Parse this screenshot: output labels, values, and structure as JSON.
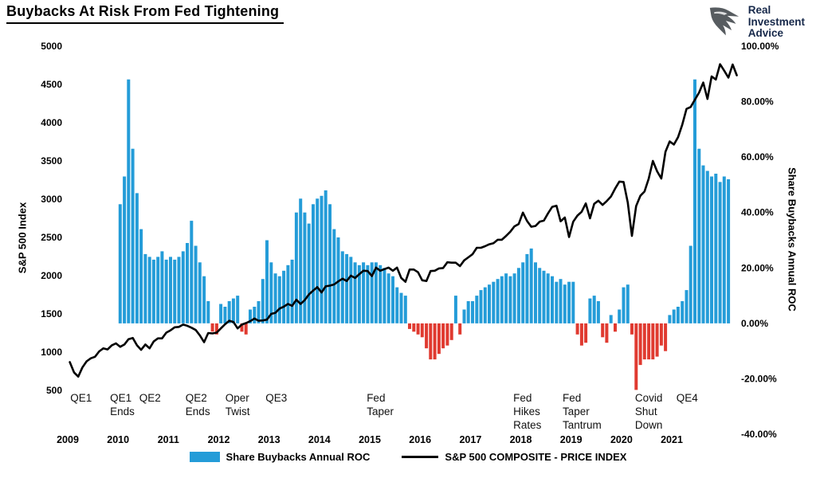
{
  "header": {
    "title": "Buybacks At Risk From Fed Tightening",
    "logo": {
      "lines": [
        "Real",
        "Investment",
        "Advice"
      ]
    }
  },
  "chart_data": {
    "type": "combo-bar-line",
    "title": "Buybacks At Risk From Fed Tightening",
    "x_axis": {
      "start": 2009,
      "end": 2022.25,
      "labels": [
        "2009",
        "2010",
        "2011",
        "2012",
        "2013",
        "2014",
        "2015",
        "2016",
        "2017",
        "2018",
        "2019",
        "2020",
        "2021"
      ]
    },
    "left_axis": {
      "title": "S&P 500 Index",
      "min": 500,
      "max": 5000,
      "ticks": [
        "5000",
        "4500",
        "4000",
        "3500",
        "3000",
        "2500",
        "2000",
        "1500",
        "1000",
        "500"
      ]
    },
    "right_axis": {
      "title": "Share Buybacks Annual ROC",
      "min": -40,
      "max": 100,
      "ticks": [
        "100.00%",
        "80.00%",
        "60.00%",
        "40.00%",
        "20.00%",
        "0.00%",
        "-20.00%",
        "-40.00%"
      ]
    },
    "colors": {
      "bar_positive": "#249CD8",
      "bar_negative": "#E03A30",
      "line": "#000000"
    },
    "series": [
      {
        "name": "Share Buybacks Annual ROC",
        "type": "bar",
        "axis": "right",
        "unit": "%",
        "interval": "monthly",
        "start_year": 2010,
        "values": [
          43,
          53,
          88,
          63,
          47,
          34,
          25,
          24,
          23,
          24,
          26,
          23,
          24,
          23,
          24,
          26,
          29,
          37,
          28,
          22,
          17,
          8,
          -3,
          -4,
          7,
          6,
          8,
          9,
          10,
          -3,
          -4,
          5,
          6,
          8,
          16,
          30,
          22,
          18,
          17,
          19,
          21,
          23,
          40,
          45,
          40,
          36,
          43,
          45,
          46,
          48,
          43,
          34,
          31,
          26,
          25,
          24,
          22,
          21,
          22,
          21,
          22,
          22,
          21,
          20,
          18,
          17,
          13,
          11,
          10,
          -2,
          -3,
          -4,
          -5,
          -9,
          -13,
          -13,
          -11,
          -9,
          -8,
          -6,
          10,
          -4,
          5,
          8,
          8,
          10,
          12,
          13,
          14,
          15,
          16,
          17,
          18,
          17,
          18,
          20,
          22,
          25,
          27,
          22,
          20,
          19,
          18,
          17,
          15,
          16,
          14,
          15,
          15,
          -4,
          -8,
          -7,
          9,
          10,
          8,
          -5,
          -7,
          3,
          -3,
          5,
          13,
          14,
          -4,
          -24,
          -15,
          -13,
          -13,
          -13,
          -12,
          -8,
          -10,
          3,
          5,
          6,
          8,
          12,
          28,
          88,
          63,
          57,
          55,
          53,
          54,
          51,
          53,
          52
        ]
      },
      {
        "name": "S&P 500 COMPOSITE - PRICE INDEX",
        "type": "line",
        "axis": "left",
        "unit": "index",
        "interval": "monthly",
        "start_year": 2009,
        "values": [
          870,
          735,
          680,
          800,
          880,
          920,
          940,
          1010,
          1050,
          1035,
          1090,
          1115,
          1070,
          1100,
          1170,
          1185,
          1090,
          1030,
          1100,
          1050,
          1140,
          1180,
          1180,
          1255,
          1285,
          1325,
          1330,
          1360,
          1345,
          1320,
          1290,
          1220,
          1130,
          1250,
          1245,
          1255,
          1310,
          1365,
          1410,
          1395,
          1310,
          1360,
          1380,
          1405,
          1440,
          1410,
          1415,
          1425,
          1500,
          1515,
          1570,
          1595,
          1630,
          1605,
          1685,
          1630,
          1680,
          1755,
          1805,
          1850,
          1780,
          1860,
          1870,
          1885,
          1925,
          1960,
          1930,
          2000,
          1970,
          2020,
          2065,
          2060,
          1995,
          2105,
          2065,
          2085,
          2105,
          2065,
          2105,
          1970,
          1920,
          2080,
          2080,
          2045,
          1940,
          1930,
          2060,
          2065,
          2095,
          2100,
          2175,
          2170,
          2170,
          2125,
          2200,
          2240,
          2280,
          2365,
          2365,
          2385,
          2410,
          2425,
          2470,
          2470,
          2520,
          2575,
          2645,
          2675,
          2825,
          2715,
          2640,
          2650,
          2705,
          2720,
          2815,
          2900,
          2915,
          2710,
          2760,
          2505,
          2705,
          2785,
          2835,
          2945,
          2750,
          2940,
          2980,
          2925,
          2975,
          3035,
          3140,
          3230,
          3225,
          2955,
          2520,
          2910,
          3045,
          3100,
          3270,
          3500,
          3365,
          3270,
          3620,
          3755,
          3715,
          3810,
          3975,
          4180,
          4205,
          4300,
          4395,
          4525,
          4310,
          4605,
          4565,
          4765,
          4680,
          4590,
          4760,
          4620
        ]
      }
    ],
    "annotations": [
      {
        "x": 2009.05,
        "lines": [
          "QE1"
        ]
      },
      {
        "x": 2009.84,
        "lines": [
          "QE1",
          "Ends"
        ]
      },
      {
        "x": 2010.42,
        "lines": [
          "QE2"
        ]
      },
      {
        "x": 2011.34,
        "lines": [
          "QE2",
          "Ends"
        ]
      },
      {
        "x": 2012.13,
        "lines": [
          "Oper",
          "Twist"
        ]
      },
      {
        "x": 2012.93,
        "lines": [
          "QE3"
        ]
      },
      {
        "x": 2014.94,
        "lines": [
          "Fed",
          "Taper"
        ]
      },
      {
        "x": 2017.85,
        "lines": [
          "Fed",
          "Hikes",
          "Rates"
        ]
      },
      {
        "x": 2018.83,
        "lines": [
          "Fed",
          "Taper",
          "Tantrum"
        ]
      },
      {
        "x": 2020.27,
        "lines": [
          "Covid",
          "Shut",
          "Down"
        ]
      },
      {
        "x": 2021.09,
        "lines": [
          "QE4"
        ]
      }
    ],
    "legend": [
      "Share Buybacks Annual ROC",
      "S&P 500 COMPOSITE - PRICE INDEX"
    ]
  }
}
